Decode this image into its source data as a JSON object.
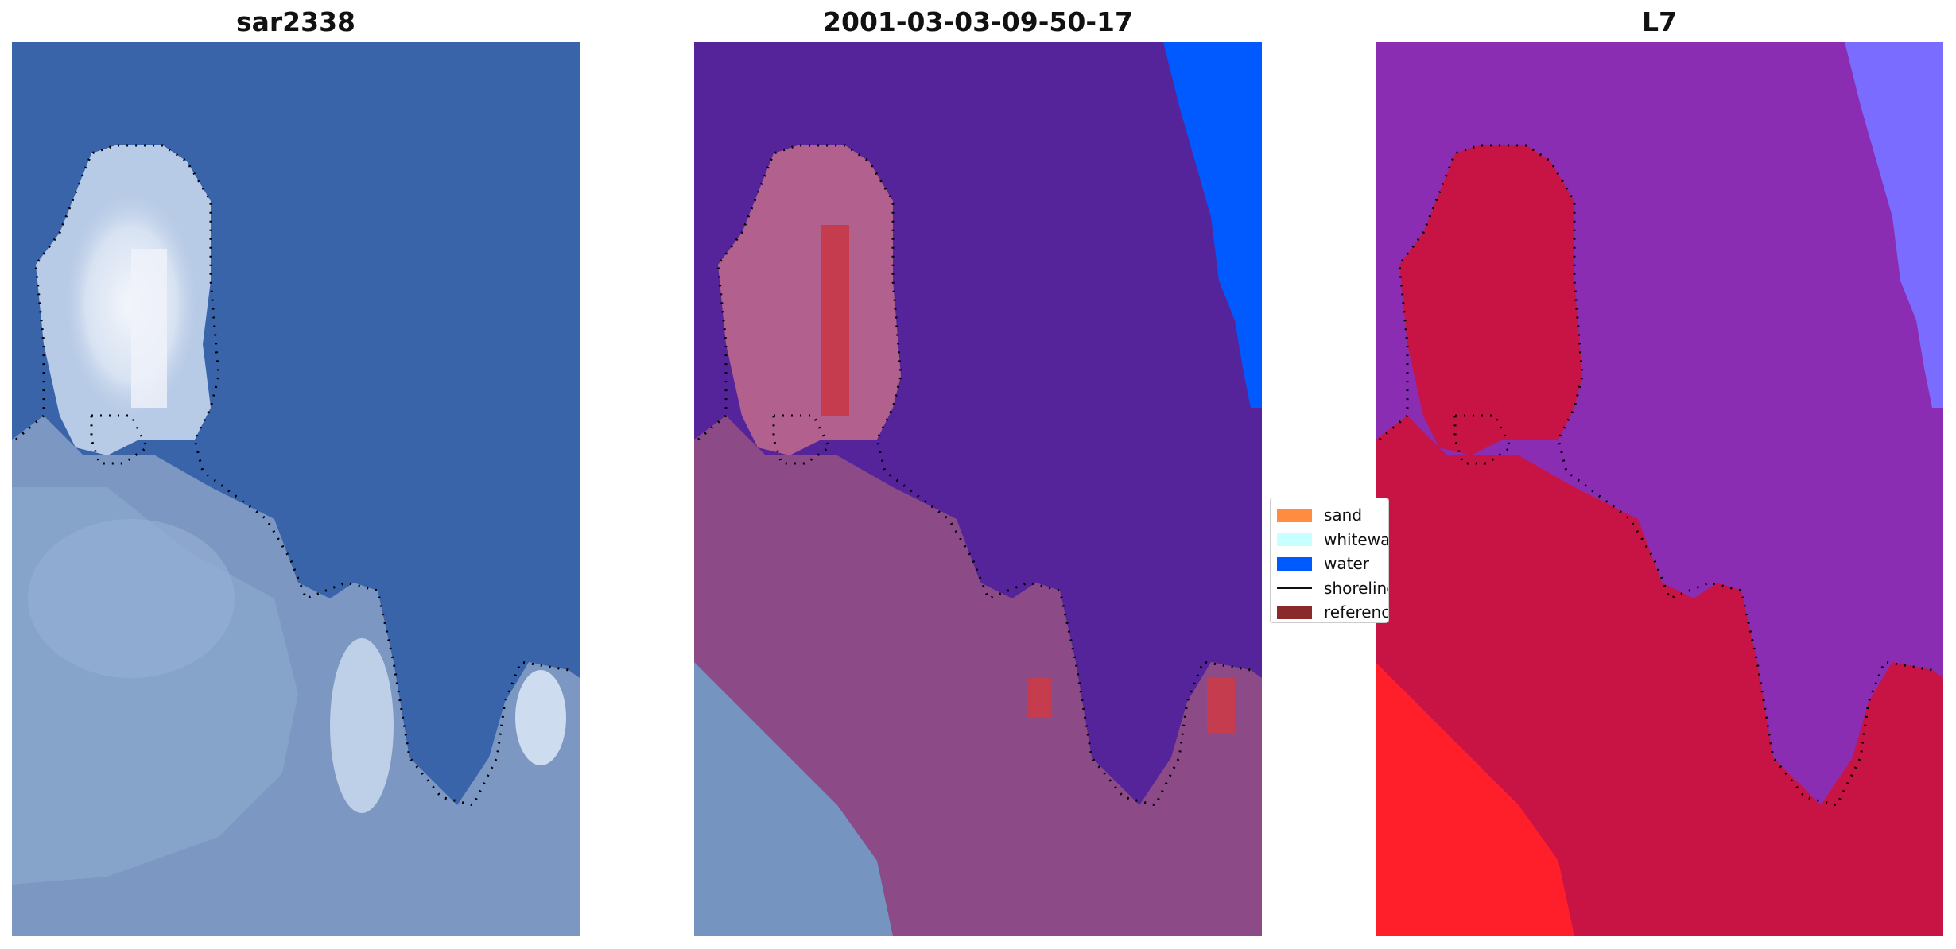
{
  "panels": [
    {
      "title": "sar2338"
    },
    {
      "title": "2001-03-03-09-50-17"
    },
    {
      "title": "L7"
    }
  ],
  "legend": {
    "items": [
      {
        "label": "sand",
        "color": "#ff8c3f",
        "kind": "patch"
      },
      {
        "label": "whitewater",
        "color": "#c8ffff",
        "kind": "patch"
      },
      {
        "label": "water",
        "color": "#005aff",
        "kind": "patch"
      },
      {
        "label": "shoreline",
        "color": "#111111",
        "kind": "line"
      },
      {
        "label": "reference",
        "color": "#8b2a2a",
        "kind": "patch"
      }
    ]
  },
  "colors": {
    "rgb_sea": "#3a64aa",
    "rgb_land": "#7b97c2",
    "rgb_white": "#e8eef7",
    "class_water_overlay": "#55249b",
    "class_land_overlay": "#8c4a86",
    "class_water_blue": "#005aff",
    "mndwi_purple": "#8a2db2",
    "mndwi_red": "#c81444",
    "mndwi_blue": "#7a6cff"
  },
  "icons": {
    "shoreline": "dotted-black-line"
  }
}
